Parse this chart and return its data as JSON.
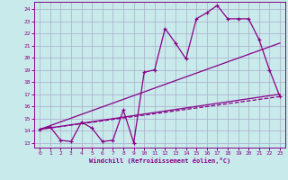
{
  "background_color": "#c8eaea",
  "grid_color": "#aaaacc",
  "line_color": "#880088",
  "xlabel": "Windchill (Refroidissement éolien,°C)",
  "ylabel_ticks": [
    13,
    14,
    15,
    16,
    17,
    18,
    19,
    20,
    21,
    22,
    23,
    24
  ],
  "xlabel_ticks": [
    0,
    1,
    2,
    3,
    4,
    5,
    6,
    7,
    8,
    9,
    10,
    11,
    12,
    13,
    14,
    15,
    16,
    17,
    18,
    19,
    20,
    21,
    22,
    23
  ],
  "ylim": [
    12.6,
    24.6
  ],
  "xlim": [
    -0.5,
    23.5
  ],
  "line1_x": [
    0,
    1,
    2,
    3,
    4,
    5,
    6,
    7,
    8,
    9,
    10,
    11,
    12,
    13,
    14,
    15,
    16,
    17,
    18,
    19,
    20,
    21,
    22,
    23
  ],
  "line1_y": [
    14.1,
    14.3,
    13.2,
    13.1,
    14.7,
    14.2,
    13.1,
    13.2,
    15.7,
    13.0,
    18.8,
    19.0,
    22.4,
    21.2,
    19.9,
    23.2,
    23.7,
    24.3,
    23.2,
    23.2,
    23.2,
    21.5,
    19.0,
    16.8
  ],
  "line2_x": [
    0,
    23
  ],
  "line2_y": [
    14.1,
    21.2
  ],
  "line3_x": [
    0,
    23
  ],
  "line3_y": [
    14.1,
    17.0
  ],
  "line4_x": [
    0,
    23
  ],
  "line4_y": [
    14.1,
    16.8
  ]
}
